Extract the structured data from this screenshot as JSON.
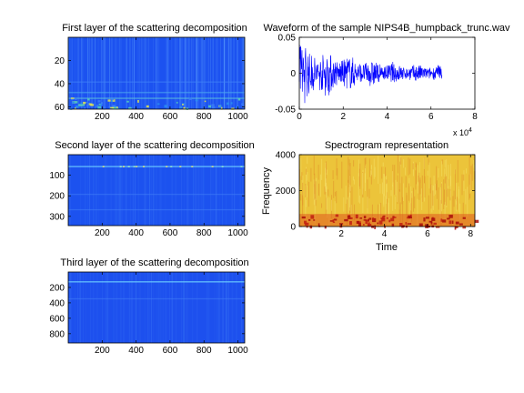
{
  "chart_data": [
    {
      "type": "heatmap",
      "title": "First layer of the scattering decomposition",
      "xlim": [
        0,
        1040
      ],
      "ylim": [
        0,
        62
      ],
      "y_reversed": true,
      "xticks": [
        200,
        400,
        600,
        800,
        1000
      ],
      "xtick_labels": [
        "200",
        "400",
        "600",
        "800",
        "1000"
      ],
      "yticks": [
        20,
        40,
        60
      ],
      "ytick_labels": [
        "20",
        "40",
        "60"
      ],
      "colormap": "jet",
      "background_color": "#1c52f0",
      "band_colors": [
        "#3a7df8",
        "#2a8ff0",
        "#58d0b8",
        "#e8e84a"
      ]
    },
    {
      "type": "line",
      "title": "Waveform of the sample NIPS4B_humpback_trunc.wav",
      "xlim": [
        0,
        80000
      ],
      "ylim": [
        -0.05,
        0.05
      ],
      "xticks": [
        0,
        20000,
        40000,
        60000,
        80000
      ],
      "xtick_labels": [
        "0",
        "2",
        "4",
        "6",
        "8"
      ],
      "x_multiplier": "x 10^4",
      "yticks": [
        -0.05,
        0,
        0.05
      ],
      "ytick_labels": [
        "-0.05",
        "0",
        "0.05"
      ],
      "signal_end": 65000,
      "amplitude_peak": 0.033,
      "amplitude_tail": 0.012,
      "color": "#0000ff"
    },
    {
      "type": "heatmap",
      "title": "Second layer of the scattering decomposition",
      "xlim": [
        0,
        1040
      ],
      "ylim": [
        0,
        345
      ],
      "y_reversed": true,
      "xticks": [
        200,
        400,
        600,
        800,
        1000
      ],
      "xtick_labels": [
        "200",
        "400",
        "600",
        "800",
        "1000"
      ],
      "yticks": [
        100,
        200,
        300
      ],
      "ytick_labels": [
        "100",
        "200",
        "300"
      ],
      "colormap": "jet",
      "background_color": "#1c52ef",
      "band_rows": [
        55,
        190,
        265
      ]
    },
    {
      "type": "heatmap",
      "title": "Spectrogram representation",
      "xlim": [
        0.05,
        8.2
      ],
      "ylim": [
        0,
        4000
      ],
      "xticks": [
        2,
        4,
        6,
        8
      ],
      "xtick_labels": [
        "2",
        "4",
        "6",
        "8"
      ],
      "yticks": [
        0,
        2000,
        4000
      ],
      "ytick_labels": [
        "0",
        "2000",
        "4000"
      ],
      "xlabel": "Time",
      "ylabel": "Frequency",
      "colormap": "hot-yellow",
      "background_color": "#ecc43a"
    },
    {
      "type": "heatmap",
      "title": "Third layer of the scattering decomposition",
      "xlim": [
        0,
        1040
      ],
      "ylim": [
        0,
        920
      ],
      "y_reversed": true,
      "xticks": [
        200,
        400,
        600,
        800,
        1000
      ],
      "xtick_labels": [
        "200",
        "400",
        "600",
        "800",
        "1000"
      ],
      "yticks": [
        200,
        400,
        600,
        800
      ],
      "ytick_labels": [
        "200",
        "400",
        "600",
        "800"
      ],
      "colormap": "jet",
      "background_color": "#1d50ee",
      "band_rows": [
        120,
        340
      ]
    }
  ]
}
